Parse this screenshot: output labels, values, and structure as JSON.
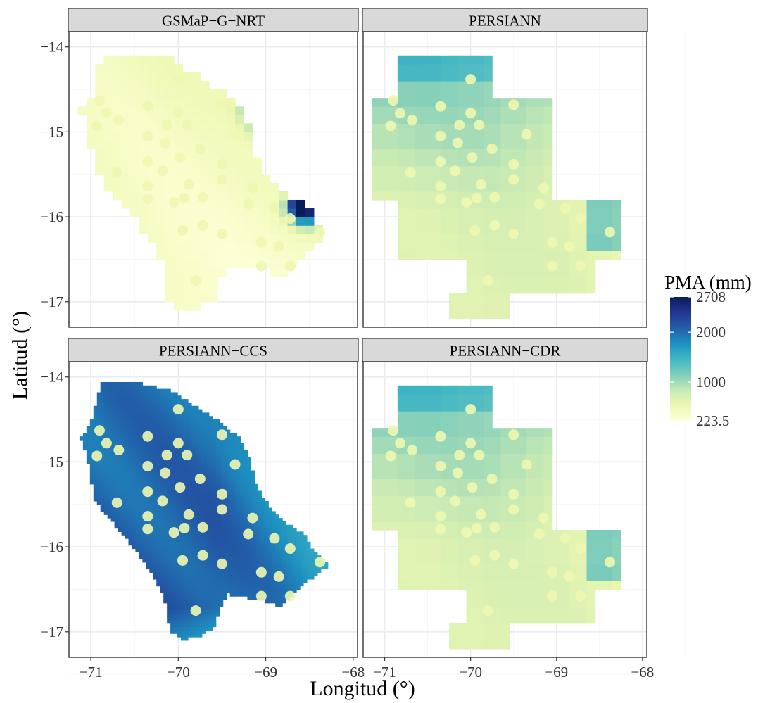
{
  "figure": {
    "y_axis_label": "Latitud (°)",
    "x_axis_label": "Longitud (°)"
  },
  "panels": [
    {
      "title": "GSMaP−G−NRT",
      "fill_style": "dry"
    },
    {
      "title": "PERSIANN",
      "fill_style": "coarse"
    },
    {
      "title": "PERSIANN−CCS",
      "fill_style": "wet"
    },
    {
      "title": "PERSIANN−CDR",
      "fill_style": "coarse"
    }
  ],
  "axes": {
    "x_ticks": [
      -71,
      -70,
      -69,
      -68
    ],
    "x_tick_labels": [
      "−71",
      "−70",
      "−69",
      "−68"
    ],
    "y_ticks": [
      -14,
      -15,
      -16,
      -17
    ],
    "y_tick_labels": [
      "−14",
      "−15",
      "−16",
      "−17"
    ],
    "xlim": [
      -71.25,
      -67.95
    ],
    "ylim": [
      -17.3,
      -13.82
    ]
  },
  "legend": {
    "title": "PMA (mm)",
    "min": 223.5,
    "max": 2708,
    "ticks": [
      2708,
      2000,
      1000,
      223.5
    ],
    "tick_labels": [
      "2708",
      "2000",
      "1000",
      "223.5"
    ],
    "colors": [
      "#ffffd9",
      "#edf8b1",
      "#c7e9b4",
      "#7fcdbb",
      "#41b6c4",
      "#1d91c0",
      "#225ea8",
      "#253494",
      "#081d58"
    ]
  },
  "stations": {
    "color": "#eef7b0",
    "points": [
      [
        -70.0,
        -14.38
      ],
      [
        -70.9,
        -14.63
      ],
      [
        -70.82,
        -14.78
      ],
      [
        -70.68,
        -14.86
      ],
      [
        -70.93,
        -14.93
      ],
      [
        -70.35,
        -14.7
      ],
      [
        -70.0,
        -14.78
      ],
      [
        -69.5,
        -14.68
      ],
      [
        -70.13,
        -14.92
      ],
      [
        -69.9,
        -14.92
      ],
      [
        -70.35,
        -15.05
      ],
      [
        -69.35,
        -15.03
      ],
      [
        -70.15,
        -15.13
      ],
      [
        -70.35,
        -15.35
      ],
      [
        -70.18,
        -15.46
      ],
      [
        -69.98,
        -15.3
      ],
      [
        -69.75,
        -15.2
      ],
      [
        -70.7,
        -15.48
      ],
      [
        -69.5,
        -15.38
      ],
      [
        -69.5,
        -15.56
      ],
      [
        -70.35,
        -15.64
      ],
      [
        -69.88,
        -15.62
      ],
      [
        -69.15,
        -15.66
      ],
      [
        -70.35,
        -15.79
      ],
      [
        -70.05,
        -15.83
      ],
      [
        -69.93,
        -15.78
      ],
      [
        -69.72,
        -15.77
      ],
      [
        -69.2,
        -15.85
      ],
      [
        -68.9,
        -15.9
      ],
      [
        -68.72,
        -16.02
      ],
      [
        -69.72,
        -16.1
      ],
      [
        -69.95,
        -16.16
      ],
      [
        -69.5,
        -16.2
      ],
      [
        -69.05,
        -16.3
      ],
      [
        -68.85,
        -16.35
      ],
      [
        -68.38,
        -16.18
      ],
      [
        -69.05,
        -16.58
      ],
      [
        -68.72,
        -16.58
      ],
      [
        -69.8,
        -16.75
      ]
    ]
  }
}
